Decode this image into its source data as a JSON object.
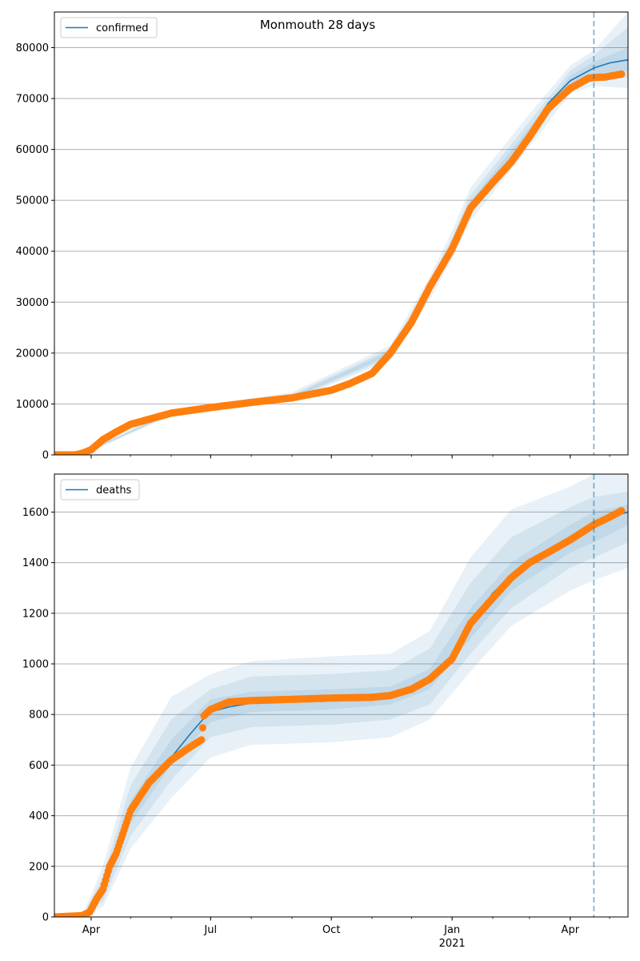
{
  "title": "Monmouth 28 days",
  "colors": {
    "model": "#1f77b4",
    "observed": "#ff7f0e",
    "band": "#1f77b4",
    "grid": "#b0b0b0",
    "vline": "#1f77b4"
  },
  "x_ticks": [
    {
      "date": "2020-04-01",
      "label": "Apr",
      "sub": ""
    },
    {
      "date": "2020-07-01",
      "label": "Jul",
      "sub": ""
    },
    {
      "date": "2020-10-01",
      "label": "Oct",
      "sub": ""
    },
    {
      "date": "2021-01-01",
      "label": "Jan",
      "sub": "2021"
    },
    {
      "date": "2021-04-01",
      "label": "Apr",
      "sub": ""
    }
  ],
  "chart_data": [
    {
      "type": "line",
      "legend": "confirmed",
      "legend_position": "top-left",
      "grid": "horizontal",
      "xlim": [
        "2020-03-04",
        "2021-05-15"
      ],
      "ylim": [
        0,
        87000
      ],
      "yticks": [
        0,
        10000,
        20000,
        30000,
        40000,
        50000,
        60000,
        70000,
        80000
      ],
      "forecast_start": "2021-04-19",
      "model": {
        "x": [
          "2020-03-04",
          "2020-03-20",
          "2020-04-01",
          "2020-04-10",
          "2020-04-20",
          "2020-05-01",
          "2020-06-01",
          "2020-07-01",
          "2020-08-01",
          "2020-09-01",
          "2020-10-01",
          "2020-10-15",
          "2020-11-01",
          "2020-11-15",
          "2020-12-01",
          "2020-12-15",
          "2021-01-01",
          "2021-01-15",
          "2021-02-01",
          "2021-02-15",
          "2021-03-01",
          "2021-03-15",
          "2021-04-01",
          "2021-04-19",
          "2021-05-01",
          "2021-05-15"
        ],
        "y": [
          0,
          0,
          1000,
          3000,
          4700,
          6000,
          8200,
          9300,
          10500,
          11300,
          12800,
          14000,
          16000,
          20000,
          26000,
          33000,
          41000,
          49000,
          54000,
          58000,
          63000,
          69000,
          73500,
          76000,
          77000,
          77600
        ]
      },
      "bands": [
        {
          "x": [
            "2020-03-04",
            "2020-04-01",
            "2020-06-01",
            "2020-09-01",
            "2020-11-15",
            "2020-12-15",
            "2021-01-01",
            "2021-01-15",
            "2021-03-01",
            "2021-04-01",
            "2021-04-19",
            "2021-05-15"
          ],
          "upper": [
            0,
            1300,
            8700,
            12300,
            21500,
            35000,
            44000,
            52500,
            67000,
            76500,
            79500,
            87000
          ],
          "lower": [
            0,
            700,
            7700,
            10700,
            18500,
            30500,
            38500,
            46000,
            60500,
            71000,
            72500,
            72000
          ]
        },
        {
          "x": [
            "2020-03-04",
            "2020-04-01",
            "2020-06-01",
            "2020-09-01",
            "2020-11-15",
            "2020-12-15",
            "2021-01-01",
            "2021-01-15",
            "2021-03-01",
            "2021-04-01",
            "2021-04-19",
            "2021-05-15"
          ],
          "upper": [
            0,
            1200,
            8500,
            11900,
            20900,
            34000,
            42700,
            51000,
            65500,
            75500,
            78500,
            84000
          ],
          "lower": [
            0,
            800,
            7900,
            10900,
            19100,
            31700,
            39500,
            47200,
            61800,
            72000,
            73800,
            74000
          ]
        },
        {
          "x": [
            "2020-03-04",
            "2020-04-01",
            "2020-06-01",
            "2020-09-01",
            "2020-11-15",
            "2020-12-15",
            "2021-01-01",
            "2021-01-15",
            "2021-03-01",
            "2021-04-01",
            "2021-04-19",
            "2021-05-15"
          ],
          "upper": [
            0,
            1100,
            8350,
            11600,
            20400,
            33500,
            41800,
            49800,
            64300,
            74500,
            77200,
            80000
          ],
          "lower": [
            0,
            900,
            8050,
            11100,
            19600,
            32500,
            40300,
            48200,
            62700,
            72600,
            74800,
            75500
          ]
        }
      ],
      "observed": {
        "x": [
          "2020-03-04",
          "2020-03-20",
          "2020-03-25",
          "2020-04-01",
          "2020-04-10",
          "2020-04-20",
          "2020-05-01",
          "2020-06-01",
          "2020-07-01",
          "2020-08-01",
          "2020-09-01",
          "2020-10-01",
          "2020-10-15",
          "2020-11-01",
          "2020-11-15",
          "2020-12-01",
          "2020-12-15",
          "2021-01-01",
          "2021-01-15",
          "2021-02-01",
          "2021-02-15",
          "2021-03-01",
          "2021-03-15",
          "2021-04-01",
          "2021-04-15",
          "2021-04-23",
          "2021-04-27",
          "2021-05-10"
        ],
        "y": [
          0,
          0,
          300,
          1000,
          3000,
          4500,
          6000,
          8200,
          9300,
          10300,
          11200,
          12700,
          14000,
          16000,
          20000,
          26000,
          33000,
          40500,
          48500,
          53500,
          57500,
          62500,
          68000,
          72000,
          74000,
          74200,
          74200,
          74800
        ]
      }
    },
    {
      "type": "line",
      "legend": "deaths",
      "legend_position": "top-left",
      "grid": "horizontal",
      "xlim": [
        "2020-03-04",
        "2021-05-15"
      ],
      "ylim": [
        0,
        1750
      ],
      "yticks": [
        0,
        200,
        400,
        600,
        800,
        1000,
        1200,
        1400,
        1600
      ],
      "forecast_start": "2021-04-19",
      "model": {
        "x": [
          "2020-03-04",
          "2020-03-25",
          "2020-04-01",
          "2020-04-10",
          "2020-04-20",
          "2020-05-01",
          "2020-05-15",
          "2020-06-01",
          "2020-06-15",
          "2020-06-25",
          "2020-07-01",
          "2020-07-15",
          "2020-08-01",
          "2020-09-01",
          "2020-10-01",
          "2020-11-01",
          "2020-11-15",
          "2020-12-01",
          "2020-12-15",
          "2021-01-01",
          "2021-01-15",
          "2021-02-01",
          "2021-02-15",
          "2021-03-01",
          "2021-03-15",
          "2021-04-01",
          "2021-04-19",
          "2021-05-01",
          "2021-05-15"
        ],
        "y": [
          0,
          0,
          20,
          100,
          250,
          400,
          520,
          630,
          720,
          780,
          810,
          830,
          845,
          855,
          865,
          868,
          875,
          895,
          940,
          1030,
          1150,
          1280,
          1350,
          1400,
          1440,
          1490,
          1545,
          1580,
          1600
        ]
      },
      "bands": [
        {
          "x": [
            "2020-03-04",
            "2020-03-25",
            "2020-04-10",
            "2020-05-01",
            "2020-06-01",
            "2020-07-01",
            "2020-08-01",
            "2020-10-01",
            "2020-11-15",
            "2020-12-15",
            "2021-01-15",
            "2021-02-15",
            "2021-04-01",
            "2021-04-19",
            "2021-05-15"
          ],
          "upper": [
            0,
            0,
            200,
            590,
            870,
            960,
            1010,
            1030,
            1040,
            1130,
            1420,
            1610,
            1700,
            1750,
            1750
          ],
          "lower": [
            0,
            0,
            40,
            270,
            470,
            630,
            680,
            690,
            710,
            780,
            970,
            1150,
            1290,
            1330,
            1380
          ]
        },
        {
          "x": [
            "2020-03-04",
            "2020-03-25",
            "2020-04-10",
            "2020-05-01",
            "2020-06-01",
            "2020-07-01",
            "2020-08-01",
            "2020-10-01",
            "2020-11-15",
            "2020-12-15",
            "2021-01-15",
            "2021-02-15",
            "2021-04-01",
            "2021-04-19",
            "2021-05-15"
          ],
          "upper": [
            0,
            0,
            160,
            520,
            780,
            900,
            950,
            960,
            975,
            1060,
            1320,
            1500,
            1620,
            1660,
            1680
          ],
          "lower": [
            0,
            0,
            60,
            320,
            540,
            710,
            750,
            760,
            780,
            840,
            1040,
            1220,
            1380,
            1420,
            1480
          ]
        },
        {
          "x": [
            "2020-03-04",
            "2020-03-25",
            "2020-04-10",
            "2020-05-01",
            "2020-06-01",
            "2020-07-01",
            "2020-08-01",
            "2020-10-01",
            "2020-11-15",
            "2020-12-15",
            "2021-01-15",
            "2021-02-15",
            "2021-04-01",
            "2021-04-19",
            "2021-05-15"
          ],
          "upper": [
            0,
            0,
            130,
            460,
            700,
            860,
            890,
            900,
            910,
            980,
            1220,
            1400,
            1550,
            1600,
            1630
          ],
          "lower": [
            0,
            0,
            80,
            370,
            600,
            770,
            810,
            820,
            840,
            900,
            1100,
            1290,
            1440,
            1480,
            1550
          ]
        }
      ],
      "observed": {
        "x": [
          "2020-03-04",
          "2020-03-25",
          "2020-03-31",
          "2020-04-05",
          "2020-04-10",
          "2020-04-15",
          "2020-04-20",
          "2020-05-01",
          "2020-05-15",
          "2020-06-01",
          "2020-06-15",
          "2020-06-24",
          "2020-06-26",
          "2020-07-01",
          "2020-07-15",
          "2020-08-01",
          "2020-09-01",
          "2020-10-01",
          "2020-11-01",
          "2020-11-15",
          "2020-12-01",
          "2020-12-15",
          "2021-01-01",
          "2021-01-15",
          "2021-02-01",
          "2021-02-15",
          "2021-03-01",
          "2021-03-15",
          "2021-04-01",
          "2021-04-19",
          "2021-05-01",
          "2021-05-10"
        ],
        "y": [
          0,
          5,
          20,
          70,
          110,
          200,
          250,
          420,
          530,
          620,
          670,
          700,
          795,
          820,
          850,
          855,
          860,
          865,
          868,
          875,
          900,
          940,
          1020,
          1160,
          1260,
          1340,
          1400,
          1440,
          1490,
          1550,
          1580,
          1605
        ]
      }
    }
  ]
}
